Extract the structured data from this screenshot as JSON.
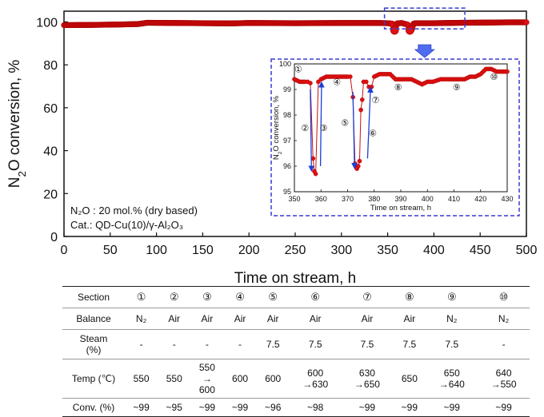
{
  "chart_data": [
    {
      "type": "scatter",
      "xlabel": "Time on stream, h",
      "ylabel": "N₂O conversion, %",
      "xlim": [
        0,
        500
      ],
      "ylim": [
        0,
        105
      ],
      "xticks": [
        0,
        50,
        100,
        150,
        200,
        250,
        300,
        350,
        400,
        450,
        500
      ],
      "yticks": [
        0,
        20,
        40,
        60,
        80,
        100
      ],
      "marker_color": "#e01010",
      "annotations": [
        "N₂O : 20 mol.% (dry based)",
        "Cat.: QD-Cu(10)/γ-Al₂O₃"
      ],
      "series": [
        {
          "x": [
            0,
            30,
            60,
            80,
            90,
            120,
            180,
            200,
            250,
            300,
            340,
            350,
            355,
            357,
            358,
            360,
            365,
            372,
            374,
            376,
            378,
            380,
            400,
            430,
            460,
            480,
            500
          ],
          "y": [
            98.5,
            98.6,
            98.8,
            99.0,
            99.6,
            99.5,
            99.3,
            99.5,
            99.4,
            99.5,
            99.5,
            99.4,
            99.2,
            96.2,
            95.8,
            99.3,
            99.5,
            98.7,
            96.0,
            96.2,
            99.2,
            99.4,
            99.4,
            99.6,
            99.7,
            99.8,
            99.8
          ]
        }
      ],
      "zoom_box": {
        "x_range": [
          350,
          430
        ],
        "color": "#3a3ad0"
      }
    },
    {
      "type": "scatter",
      "xlabel": "Time on stream, h",
      "ylabel": "N₂O conversion, %",
      "xlim": [
        350,
        430
      ],
      "ylim": [
        95,
        100
      ],
      "xticks": [
        350,
        360,
        370,
        380,
        390,
        400,
        410,
        420,
        430
      ],
      "yticks": [
        95,
        96,
        97,
        98,
        99,
        100
      ],
      "marker_color": "#e01010",
      "arrow_color": "#1b3fd6",
      "series": [
        {
          "x": [
            350,
            352,
            354,
            355,
            356,
            357,
            357.5,
            358,
            359,
            360,
            362,
            364,
            366,
            368,
            370,
            371,
            372,
            372.8,
            373.5,
            374,
            374.5,
            375,
            375.5,
            376,
            377,
            378,
            379,
            380,
            382,
            384,
            386,
            388,
            390,
            392,
            394,
            396,
            398,
            400,
            402,
            405,
            408,
            410,
            412,
            414,
            416,
            418,
            420,
            422,
            424,
            426,
            428,
            430
          ],
          "y": [
            99.4,
            99.3,
            99.3,
            99.3,
            99.25,
            96.3,
            95.8,
            95.7,
            99.3,
            99.4,
            99.5,
            99.5,
            99.5,
            99.5,
            99.5,
            99.5,
            98.7,
            96.1,
            95.9,
            96.0,
            96.2,
            98.2,
            98.6,
            99.3,
            99.3,
            99.1,
            99.1,
            99.5,
            99.6,
            99.6,
            99.6,
            99.4,
            99.4,
            99.4,
            99.4,
            99.3,
            99.2,
            99.3,
            99.3,
            99.4,
            99.4,
            99.4,
            99.4,
            99.4,
            99.5,
            99.5,
            99.6,
            99.8,
            99.8,
            99.7,
            99.7,
            99.7
          ]
        }
      ],
      "section_labels": [
        {
          "label": "①",
          "x": 351.5,
          "y": 99.8
        },
        {
          "label": "②",
          "x": 354,
          "y": 97.5
        },
        {
          "label": "③",
          "x": 361,
          "y": 97.5
        },
        {
          "label": "④",
          "x": 366,
          "y": 99.3
        },
        {
          "label": "⑤",
          "x": 369,
          "y": 97.7
        },
        {
          "label": "⑥",
          "x": 379.5,
          "y": 97.3
        },
        {
          "label": "⑦",
          "x": 380.5,
          "y": 98.6
        },
        {
          "label": "⑧",
          "x": 389,
          "y": 99.1
        },
        {
          "label": "⑨",
          "x": 411,
          "y": 99.1
        },
        {
          "label": "⑩",
          "x": 425,
          "y": 99.5
        }
      ]
    }
  ],
  "conditions_table": {
    "headers": [
      "Section",
      "①",
      "②",
      "③",
      "④",
      "⑤",
      "⑥",
      "⑦",
      "⑧",
      "⑨",
      "⑩"
    ],
    "rows": {
      "balance": {
        "label": "Balance",
        "cells": [
          "N₂",
          "Air",
          "Air",
          "Air",
          "Air",
          "Air",
          "Air",
          "Air",
          "N₂",
          "N₂"
        ]
      },
      "steam": {
        "label_line1": "Steam",
        "label_line2": "(%)",
        "cells": [
          "-",
          "-",
          "-",
          "-",
          "7.5",
          "7.5",
          "7.5",
          "7.5",
          "7.5",
          "-"
        ]
      },
      "temp": {
        "label": "Temp (℃)",
        "cells": [
          {
            "l1": "550",
            "l2": "",
            "l3": ""
          },
          {
            "l1": "550",
            "l2": "",
            "l3": ""
          },
          {
            "l1": "550",
            "l2": "→",
            "l3": "600"
          },
          {
            "l1": "600",
            "l2": "",
            "l3": ""
          },
          {
            "l1": "600",
            "l2": "",
            "l3": ""
          },
          {
            "l1": "600",
            "l2": "→630",
            "l3": ""
          },
          {
            "l1": "630",
            "l2": "→650",
            "l3": ""
          },
          {
            "l1": "650",
            "l2": "",
            "l3": ""
          },
          {
            "l1": "650",
            "l2": "→640",
            "l3": ""
          },
          {
            "l1": "640",
            "l2": "→550",
            "l3": ""
          }
        ]
      },
      "conv": {
        "label": "Conv. (%)",
        "cells": [
          "~99",
          "~95",
          "~99",
          "~99",
          "~96",
          "~98",
          "~99",
          "~99",
          "~99",
          "~99"
        ]
      }
    }
  }
}
